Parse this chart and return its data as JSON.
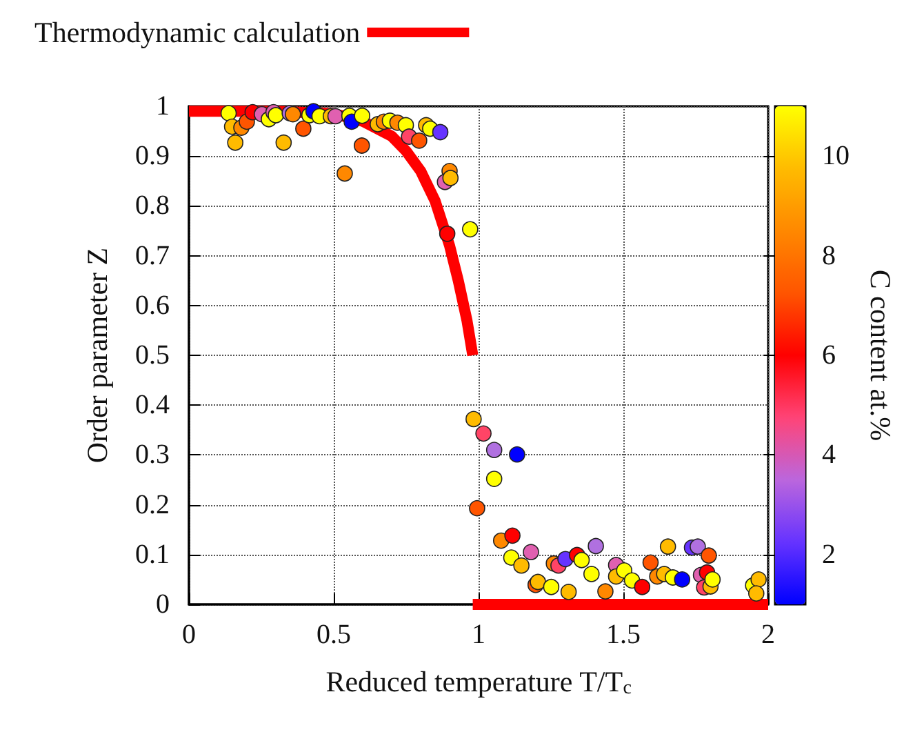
{
  "chart_data": {
    "type": "scatter",
    "xlabel": "Reduced temperature T/T$_{c}$",
    "ylabel": "Order parameter Z",
    "clabel": "C content at.%",
    "xlim": [
      0,
      2
    ],
    "xticks": [
      0,
      0.5,
      1,
      1.5,
      2
    ],
    "ylim": [
      0,
      1
    ],
    "yticks": [
      0,
      0.1,
      0.2,
      0.3,
      0.4,
      0.5,
      0.6,
      0.7,
      0.8,
      0.9,
      1
    ],
    "clim": [
      1,
      11
    ],
    "cticks": [
      2,
      4,
      6,
      8,
      10
    ],
    "grid": true,
    "legend": "top left",
    "series": [
      {
        "type": "line",
        "name": "Thermodynamic calculation",
        "color": "#ff0000",
        "line_style": "solid",
        "marker": "none",
        "x": [
          0,
          0.3,
          0.5,
          0.6,
          0.7,
          0.75,
          0.8,
          0.85,
          0.9,
          0.93,
          0.96,
          0.98
        ],
        "values": [
          0.99,
          0.99,
          0.985,
          0.97,
          0.94,
          0.91,
          0.87,
          0.81,
          0.72,
          0.65,
          0.57,
          0.5
        ]
      },
      {
        "type": "line",
        "color": "#ff0000",
        "line_style": "solid",
        "marker": "none",
        "x": [
          0.98,
          2
        ],
        "values": [
          0,
          0
        ]
      },
      {
        "marker": "circle",
        "x": [
          0.137,
          0.149,
          0.16,
          0.181,
          0.2,
          0.22,
          0.252,
          0.276,
          0.292,
          0.3,
          0.327,
          0.348,
          0.359,
          0.395,
          0.416,
          0.43,
          0.451,
          0.49,
          0.506,
          0.538,
          0.554,
          0.562,
          0.597,
          0.598,
          0.652,
          0.673,
          0.694,
          0.72,
          0.749,
          0.76,
          0.795,
          0.819,
          0.833,
          0.868,
          0.9,
          0.884,
          0.903,
          0.892,
          0.971,
          0.983,
          1.017,
          1.054,
          1.133,
          1.054,
          0.995,
          1.078,
          1.117,
          1.113,
          1.148,
          1.181,
          1.197,
          1.205,
          1.251,
          1.26,
          1.276,
          1.3,
          1.311,
          1.34,
          1.356,
          1.39,
          1.405,
          1.438,
          1.475,
          1.475,
          1.503,
          1.53,
          1.565,
          1.594,
          1.617,
          1.641,
          1.654,
          1.671,
          1.703,
          1.737,
          1.757,
          1.795,
          1.768,
          1.789,
          1.779,
          1.801,
          1.808,
          1.948,
          1.967,
          1.959
        ],
        "values": [
          0.986,
          0.959,
          0.927,
          0.957,
          0.969,
          0.988,
          0.984,
          0.974,
          0.988,
          0.982,
          0.927,
          0.986,
          0.984,
          0.955,
          0.982,
          0.99,
          0.98,
          0.98,
          0.98,
          0.865,
          0.981,
          0.969,
          0.921,
          0.981,
          0.964,
          0.969,
          0.971,
          0.967,
          0.962,
          0.939,
          0.931,
          0.962,
          0.955,
          0.948,
          0.87,
          0.848,
          0.856,
          0.744,
          0.753,
          0.372,
          0.343,
          0.31,
          0.301,
          0.252,
          0.193,
          0.128,
          0.138,
          0.094,
          0.078,
          0.105,
          0.039,
          0.045,
          0.035,
          0.082,
          0.078,
          0.091,
          0.025,
          0.099,
          0.089,
          0.061,
          0.117,
          0.026,
          0.079,
          0.056,
          0.068,
          0.048,
          0.035,
          0.084,
          0.056,
          0.061,
          0.116,
          0.054,
          0.05,
          0.114,
          0.116,
          0.098,
          0.059,
          0.064,
          0.034,
          0.036,
          0.05,
          0.038,
          0.05,
          0.022
        ],
        "colors": [
          "#ffff00",
          "#ffbb00",
          "#ffbb00",
          "#ff8800",
          "#ff5500",
          "#ff0000",
          "#e060b0",
          "#ffff00",
          "#e060b0",
          "#ffff00",
          "#ffbb00",
          "#b070e0",
          "#ff8800",
          "#ff5500",
          "#ffff00",
          "#0000ff",
          "#ffff00",
          "#ffbb00",
          "#e060b0",
          "#ff8800",
          "#ffff00",
          "#0000ff",
          "#ff5500",
          "#ffff00",
          "#ffbb00",
          "#ff8800",
          "#ffff00",
          "#ff8800",
          "#ffff00",
          "#ff4466",
          "#ff5500",
          "#ffbb00",
          "#ffff00",
          "#6633ff",
          "#ff8800",
          "#e060b0",
          "#ffbb00",
          "#ff0000",
          "#ffff00",
          "#ffbb00",
          "#ff4466",
          "#b070e0",
          "#0000ff",
          "#ffff00",
          "#ff5500",
          "#ff8800",
          "#ff0000",
          "#ffff00",
          "#ffbb00",
          "#e060b0",
          "#ff5500",
          "#ffbb00",
          "#ffff00",
          "#ff8800",
          "#ff4466",
          "#6633ff",
          "#ffbb00",
          "#ff0000",
          "#ffff00",
          "#ffff00",
          "#b070e0",
          "#ff8800",
          "#e060b0",
          "#ffbb00",
          "#ffff00",
          "#ffff00",
          "#ff0000",
          "#ff5500",
          "#ff8800",
          "#ffbb00",
          "#ffbb00",
          "#ffff00",
          "#0000ff",
          "#6633ff",
          "#b070e0",
          "#ff5500",
          "#e060b0",
          "#ff0000",
          "#ff4466",
          "#ffbb00",
          "#ffff00",
          "#ffff00",
          "#ffbb00",
          "#ffbb00"
        ]
      }
    ]
  }
}
